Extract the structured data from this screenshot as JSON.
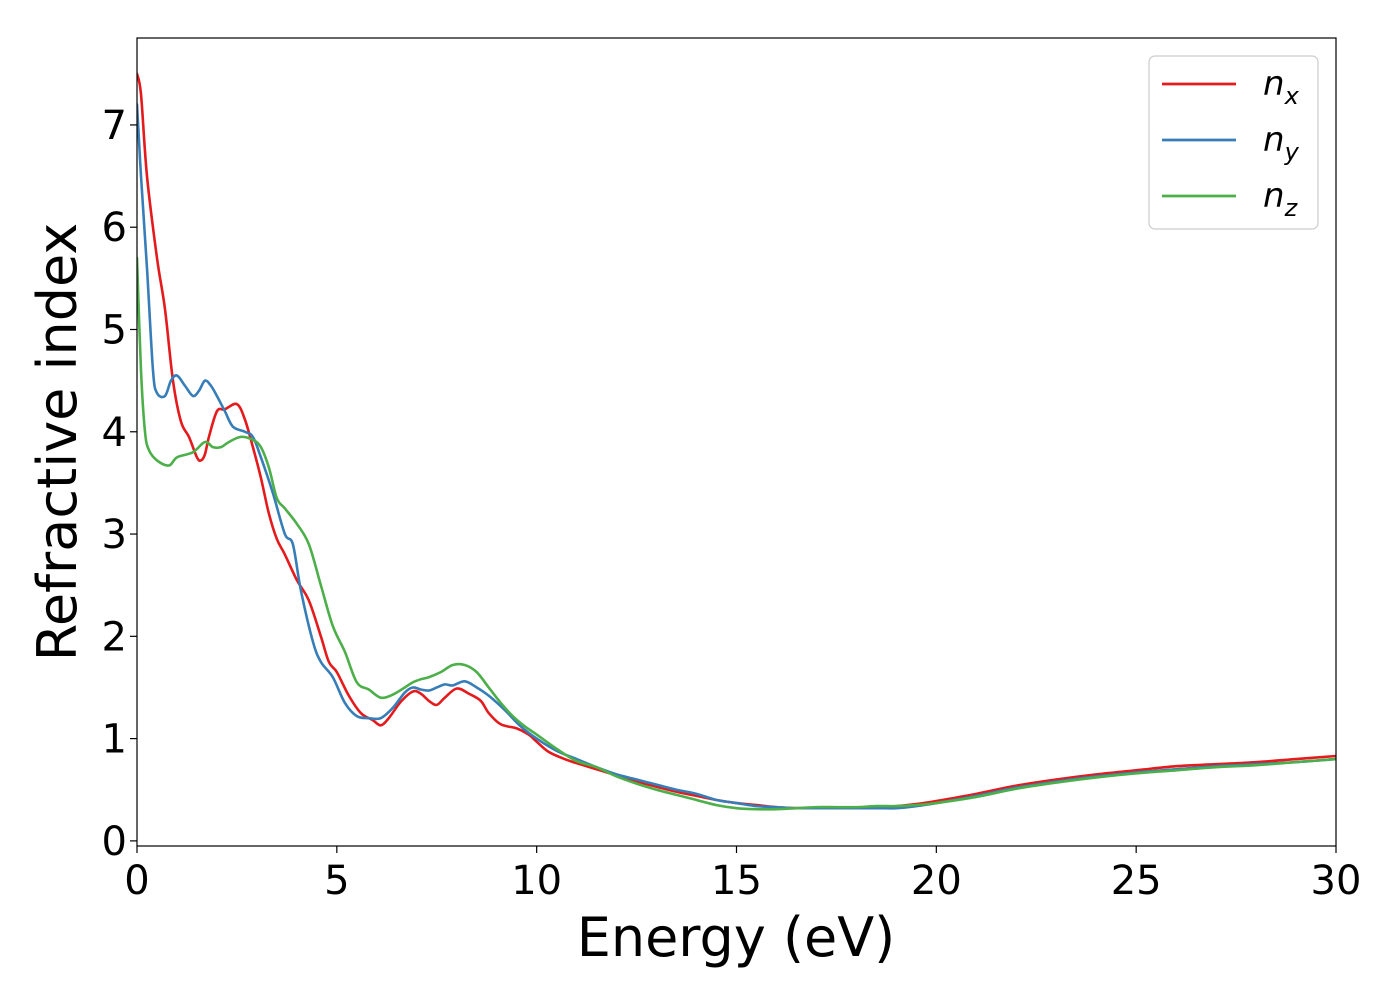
{
  "chart_data": {
    "type": "line",
    "xlabel": "Energy (eV)",
    "ylabel": "Refractive index",
    "xlim": [
      0,
      30
    ],
    "ylim": [
      -0.05,
      7.85
    ],
    "xticks": [
      0,
      5,
      10,
      15,
      20,
      25,
      30
    ],
    "yticks": [
      0,
      1,
      2,
      3,
      4,
      5,
      6,
      7
    ],
    "grid": false,
    "legend_position": "top-right",
    "series": [
      {
        "name": "n",
        "subscript": "x",
        "color": "#e41a1c",
        "x": [
          0,
          0.1,
          0.25,
          0.5,
          0.7,
          0.9,
          1.1,
          1.3,
          1.5,
          1.6,
          1.7,
          1.8,
          2.0,
          2.2,
          2.5,
          2.7,
          2.9,
          3.1,
          3.3,
          3.5,
          3.7,
          4.0,
          4.3,
          4.6,
          4.8,
          5.0,
          5.3,
          5.6,
          5.9,
          6.1,
          6.3,
          6.6,
          6.9,
          7.1,
          7.3,
          7.5,
          7.7,
          8.0,
          8.3,
          8.6,
          8.8,
          9.1,
          9.5,
          9.8,
          10.0,
          10.3,
          10.7,
          11.0,
          11.5,
          12.0,
          12.5,
          13.0,
          13.5,
          14.0,
          14.5,
          15.0,
          15.5,
          16.0,
          16.5,
          17.0,
          17.5,
          18.0,
          18.5,
          19.0,
          19.5,
          20.0,
          21.0,
          22.0,
          23.0,
          24.0,
          25.0,
          26.0,
          27.0,
          28.0,
          29.0,
          30.0
        ],
        "y": [
          7.5,
          7.3,
          6.5,
          5.7,
          5.2,
          4.5,
          4.1,
          3.95,
          3.75,
          3.72,
          3.78,
          3.95,
          4.2,
          4.22,
          4.27,
          4.12,
          3.85,
          3.55,
          3.2,
          2.95,
          2.8,
          2.55,
          2.35,
          2.0,
          1.75,
          1.65,
          1.42,
          1.25,
          1.18,
          1.13,
          1.2,
          1.36,
          1.46,
          1.44,
          1.37,
          1.33,
          1.4,
          1.49,
          1.44,
          1.37,
          1.25,
          1.14,
          1.1,
          1.04,
          0.97,
          0.87,
          0.8,
          0.76,
          0.7,
          0.64,
          0.58,
          0.53,
          0.48,
          0.44,
          0.4,
          0.37,
          0.35,
          0.33,
          0.32,
          0.32,
          0.32,
          0.32,
          0.33,
          0.34,
          0.36,
          0.39,
          0.46,
          0.54,
          0.6,
          0.65,
          0.69,
          0.73,
          0.75,
          0.77,
          0.8,
          0.83
        ]
      },
      {
        "name": "n",
        "subscript": "y",
        "color": "#377eb8",
        "x": [
          0,
          0.1,
          0.25,
          0.4,
          0.5,
          0.7,
          0.85,
          1.0,
          1.2,
          1.4,
          1.55,
          1.7,
          1.85,
          2.0,
          2.2,
          2.4,
          2.7,
          2.9,
          3.1,
          3.4,
          3.7,
          3.9,
          4.1,
          4.4,
          4.6,
          4.9,
          5.2,
          5.5,
          5.8,
          6.1,
          6.4,
          6.7,
          6.9,
          7.1,
          7.3,
          7.5,
          7.7,
          7.9,
          8.2,
          8.5,
          8.8,
          9.2,
          9.6,
          10.0,
          10.5,
          11.0,
          11.5,
          12.0,
          12.5,
          13.0,
          13.5,
          14.0,
          14.5,
          15.0,
          15.5,
          16.0,
          16.5,
          17.0,
          17.5,
          18.0,
          18.5,
          19.0,
          19.5,
          20.0,
          21.0,
          22.0,
          23.0,
          24.0,
          25.0,
          26.0,
          27.0,
          28.0,
          29.0,
          30.0
        ],
        "y": [
          7.2,
          6.5,
          5.6,
          4.6,
          4.38,
          4.35,
          4.5,
          4.55,
          4.45,
          4.35,
          4.4,
          4.5,
          4.45,
          4.35,
          4.2,
          4.05,
          4.0,
          3.95,
          3.75,
          3.4,
          3.0,
          2.9,
          2.45,
          1.95,
          1.75,
          1.6,
          1.35,
          1.22,
          1.2,
          1.2,
          1.3,
          1.45,
          1.5,
          1.48,
          1.47,
          1.5,
          1.53,
          1.52,
          1.56,
          1.5,
          1.42,
          1.28,
          1.12,
          1.0,
          0.88,
          0.8,
          0.72,
          0.65,
          0.6,
          0.55,
          0.5,
          0.46,
          0.4,
          0.37,
          0.34,
          0.33,
          0.32,
          0.32,
          0.32,
          0.32,
          0.32,
          0.32,
          0.34,
          0.37,
          0.44,
          0.52,
          0.58,
          0.63,
          0.67,
          0.7,
          0.73,
          0.75,
          0.77,
          0.8
        ]
      },
      {
        "name": "n",
        "subscript": "z",
        "color": "#4daf4a",
        "x": [
          0,
          0.1,
          0.2,
          0.3,
          0.5,
          0.8,
          1.0,
          1.4,
          1.7,
          1.9,
          2.1,
          2.3,
          2.6,
          2.9,
          3.1,
          3.3,
          3.5,
          3.7,
          4.0,
          4.3,
          4.6,
          4.9,
          5.2,
          5.5,
          5.8,
          6.1,
          6.4,
          6.7,
          6.9,
          7.1,
          7.3,
          7.6,
          7.9,
          8.2,
          8.5,
          8.8,
          9.1,
          9.4,
          9.7,
          10.0,
          10.5,
          11.0,
          11.5,
          12.0,
          12.5,
          13.0,
          13.5,
          14.0,
          14.5,
          15.0,
          15.5,
          16.0,
          16.5,
          17.0,
          17.5,
          18.0,
          18.5,
          19.0,
          19.5,
          20.0,
          21.0,
          22.0,
          23.0,
          24.0,
          25.0,
          26.0,
          27.0,
          28.0,
          29.0,
          30.0
        ],
        "y": [
          5.7,
          4.6,
          4.0,
          3.82,
          3.72,
          3.67,
          3.75,
          3.8,
          3.9,
          3.85,
          3.85,
          3.9,
          3.95,
          3.92,
          3.85,
          3.65,
          3.35,
          3.25,
          3.1,
          2.9,
          2.5,
          2.1,
          1.85,
          1.55,
          1.48,
          1.4,
          1.43,
          1.5,
          1.55,
          1.58,
          1.6,
          1.65,
          1.72,
          1.72,
          1.65,
          1.5,
          1.35,
          1.22,
          1.12,
          1.04,
          0.9,
          0.78,
          0.72,
          0.63,
          0.56,
          0.5,
          0.45,
          0.4,
          0.35,
          0.32,
          0.31,
          0.31,
          0.32,
          0.33,
          0.33,
          0.33,
          0.34,
          0.34,
          0.35,
          0.37,
          0.43,
          0.51,
          0.57,
          0.62,
          0.66,
          0.69,
          0.72,
          0.74,
          0.77,
          0.8
        ]
      }
    ]
  }
}
